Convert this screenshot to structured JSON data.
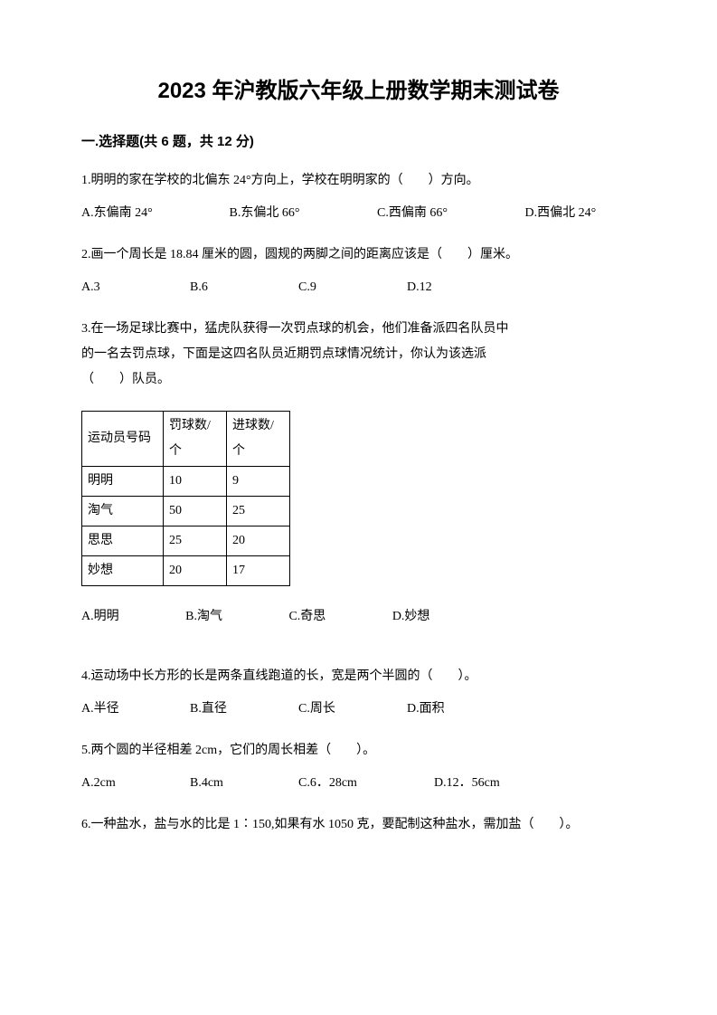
{
  "title": "2023 年沪教版六年级上册数学期末测试卷",
  "section": "一.选择题(共 6 题，共 12 分)",
  "q1": {
    "text": "1.明明的家在学校的北偏东 24°方向上，学校在明明家的（　　）方向。",
    "a": "A.东偏南 24°",
    "b": "B.东偏北 66°",
    "c": "C.西偏南 66°",
    "d": "D.西偏北 24°"
  },
  "q2": {
    "text": "2.画一个周长是 18.84 厘米的圆，圆规的两脚之间的距离应该是（　　）厘米。",
    "a": "A.3",
    "b": "B.6",
    "c": "C.9",
    "d": "D.12"
  },
  "q3": {
    "line1": "3.在一场足球比赛中，猛虎队获得一次罚点球的机会，他们准备派四名队员中",
    "line2": "的一名去罚点球，下面是这四名队员近期罚点球情况统计，你认为该选派",
    "line3": "（　　）队员。",
    "table": {
      "headers": [
        "运动员号码",
        "罚球数/个",
        "进球数/个"
      ],
      "rows": [
        [
          "明明",
          "10",
          "9"
        ],
        [
          "淘气",
          "50",
          "25"
        ],
        [
          "思思",
          "25",
          "20"
        ],
        [
          "妙想",
          "20",
          "17"
        ]
      ],
      "col_widths": [
        "90px",
        "70px",
        "70px"
      ]
    },
    "a": "A.明明",
    "b": "B.淘气",
    "c": "C.奇思",
    "d": "D.妙想"
  },
  "q4": {
    "text": "4.运动场中长方形的长是两条直线跑道的长，宽是两个半圆的（　　）。",
    "a": "A.半径",
    "b": "B.直径",
    "c": "C.周长",
    "d": "D.面积"
  },
  "q5": {
    "text": "5.两个圆的半径相差 2cm，它们的周长相差（　　）。",
    "a": "A.2cm",
    "b": "B.4cm",
    "c": "C.6．28cm",
    "d": "D.12．56cm"
  },
  "q6": {
    "text": "6.一种盐水，盐与水的比是 1∶150,如果有水 1050 克，要配制这种盐水，需加盐（　　）。"
  }
}
